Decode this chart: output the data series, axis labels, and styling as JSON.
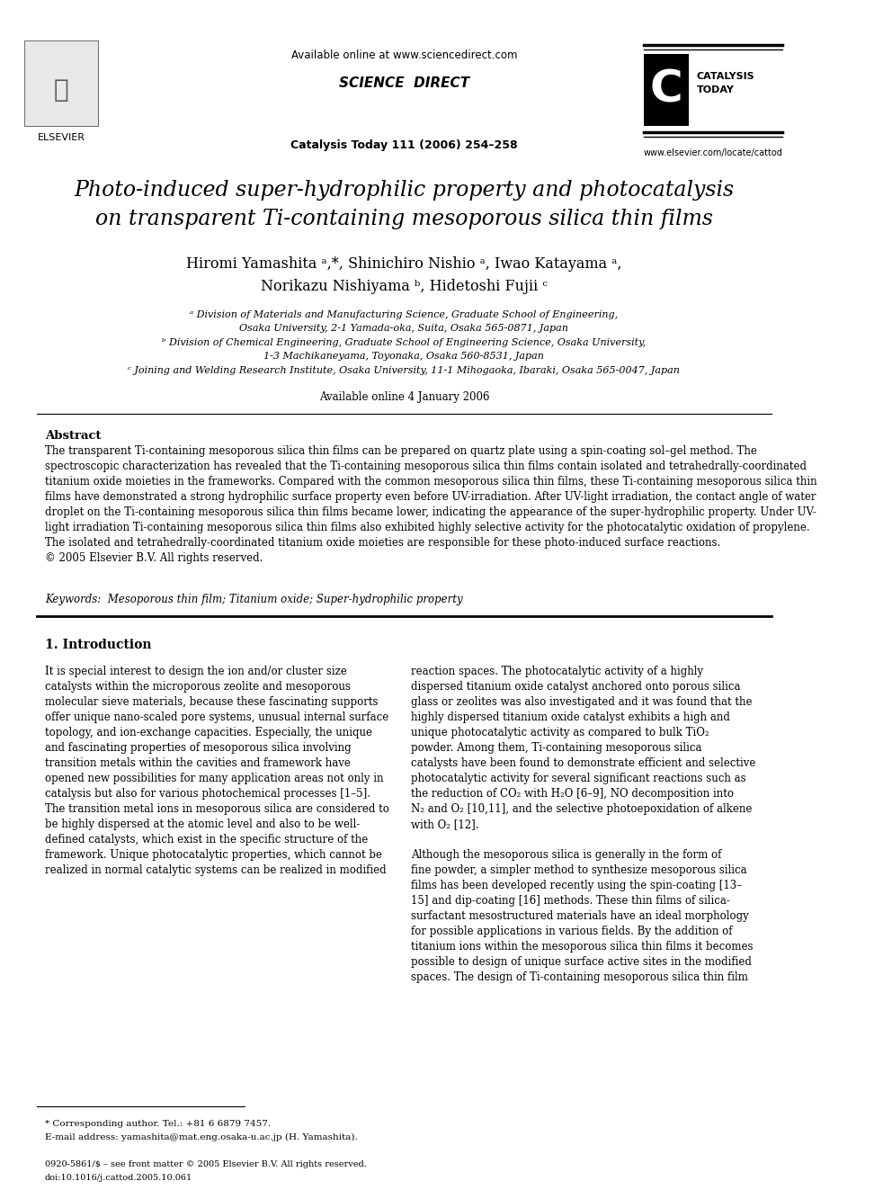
{
  "bg_color": "#ffffff",
  "header": {
    "available_online": "Available online at www.sciencedirect.com",
    "journal_info": "Catalysis Today 111 (2006) 254–258",
    "website": "www.elsevier.com/locate/cattod",
    "elsevier_label": "ELSEVIER",
    "catalysis_label1": "CATALYSIS",
    "catalysis_label2": "TODAY"
  },
  "title_line1": "Photo-induced super-hydrophilic property and photocatalysis",
  "title_line2": "on transparent Ti-containing mesoporous silica thin films",
  "authors": "Hiromi Yamashita ᵃ,*, Shinichiro Nishio ᵃ, Iwao Katayama ᵃ,",
  "authors2": "Norikazu Nishiyama ᵇ, Hidetoshi Fujii ᶜ",
  "affil_a": "ᵃ Division of Materials and Manufacturing Science, Graduate School of Engineering,",
  "affil_a2": "Osaka University, 2-1 Yamada-oka, Suita, Osaka 565-0871, Japan",
  "affil_b": "ᵇ Division of Chemical Engineering, Graduate School of Engineering Science, Osaka University,",
  "affil_b2": "1-3 Machikaneyama, Toyonaka, Osaka 560-8531, Japan",
  "affil_c": "ᶜ Joining and Welding Research Institute, Osaka University, 11-1 Mihogaoka, Ibaraki, Osaka 565-0047, Japan",
  "available_online_date": "Available online 4 January 2006",
  "abstract_title": "Abstract",
  "abstract_text": "The transparent Ti-containing mesoporous silica thin films can be prepared on quartz plate using a spin-coating sol–gel method. The\nspectroscopic characterization has revealed that the Ti-containing mesoporous silica thin films contain isolated and tetrahedrally-coordinated\ntitanium oxide moieties in the frameworks. Compared with the common mesoporous silica thin films, these Ti-containing mesoporous silica thin\nfilms have demonstrated a strong hydrophilic surface property even before UV-irradiation. After UV-light irradiation, the contact angle of water\ndroplet on the Ti-containing mesoporous silica thin films became lower, indicating the appearance of the super-hydrophilic property. Under UV-\nlight irradiation Ti-containing mesoporous silica thin films also exhibited highly selective activity for the photocatalytic oxidation of propylene.\nThe isolated and tetrahedrally-coordinated titanium oxide moieties are responsible for these photo-induced surface reactions.\n© 2005 Elsevier B.V. All rights reserved.",
  "keywords_label": "Keywords:",
  "keywords_text": "Mesoporous thin film; Titanium oxide; Super-hydrophilic property",
  "section1_title": "1. Introduction",
  "section1_col1": "It is special interest to design the ion and/or cluster size\ncatalysts within the microporous zeolite and mesoporous\nmolecular sieve materials, because these fascinating supports\noffer unique nano-scaled pore systems, unusual internal surface\ntopology, and ion-exchange capacities. Especially, the unique\nand fascinating properties of mesoporous silica involving\ntransition metals within the cavities and framework have\nopened new possibilities for many application areas not only in\ncatalysis but also for various photochemical processes [1–5].\nThe transition metal ions in mesoporous silica are considered to\nbe highly dispersed at the atomic level and also to be well-\ndefined catalysts, which exist in the specific structure of the\nframework. Unique photocatalytic properties, which cannot be\nrealized in normal catalytic systems can be realized in modified",
  "section1_col2": "reaction spaces. The photocatalytic activity of a highly\ndispersed titanium oxide catalyst anchored onto porous silica\nglass or zeolites was also investigated and it was found that the\nhighly dispersed titanium oxide catalyst exhibits a high and\nunique photocatalytic activity as compared to bulk TiO₂\npowder. Among them, Ti-containing mesoporous silica\ncatalysts have been found to demonstrate efficient and selective\nphotocatalytic activity for several significant reactions such as\nthe reduction of CO₂ with H₂O [6–9], NO decomposition into\nN₂ and O₂ [10,11], and the selective photoepoxidation of alkene\nwith O₂ [12].\n\nAlthough the mesoporous silica is generally in the form of\nfine powder, a simpler method to synthesize mesoporous silica\nfilms has been developed recently using the spin-coating [13–\n15] and dip-coating [16] methods. These thin films of silica-\nsurfactant mesostructured materials have an ideal morphology\nfor possible applications in various fields. By the addition of\ntitanium ions within the mesoporous silica thin films it becomes\npossible to design of unique surface active sites in the modified\nspaces. The design of Ti-containing mesoporous silica thin film",
  "footnote_star": "* Corresponding author. Tel.: +81 6 6879 7457.",
  "footnote_email": "E-mail address: yamashita@mat.eng.osaka-u.ac.jp (H. Yamashita).",
  "footer_issn": "0920-5861/$ – see front matter © 2005 Elsevier B.V. All rights reserved.",
  "footer_doi": "doi:10.1016/j.cattod.2005.10.061"
}
